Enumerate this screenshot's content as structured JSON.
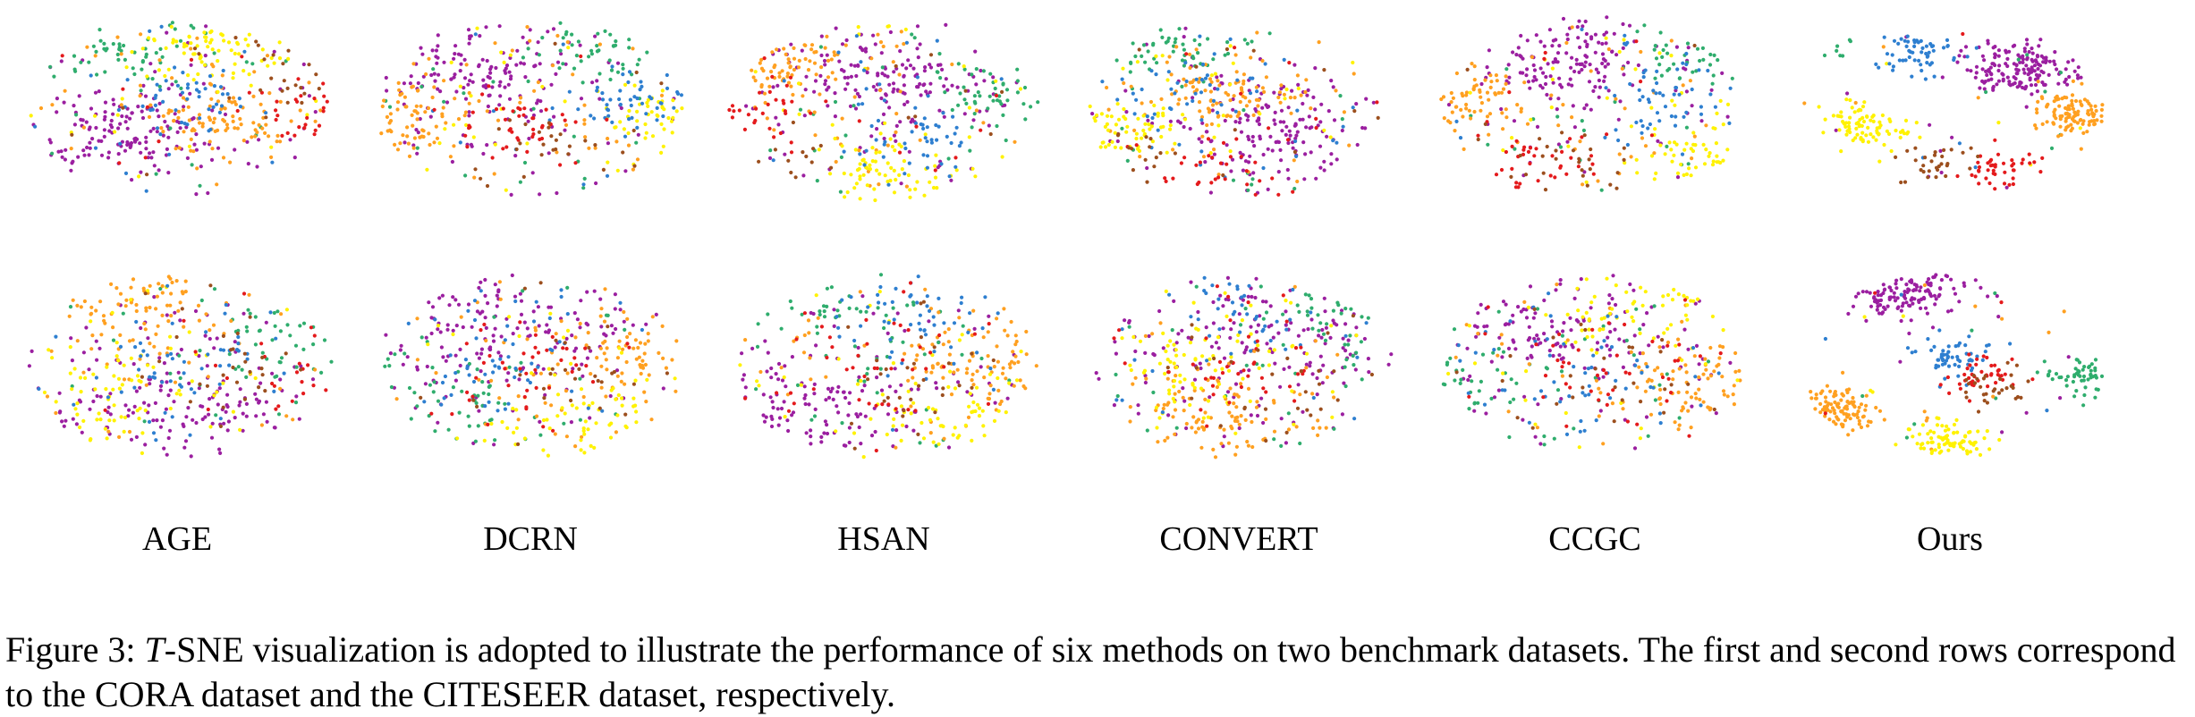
{
  "figure": {
    "methods": [
      "AGE",
      "DCRN",
      "HSAN",
      "CONVERT",
      "CCGC",
      "Ours"
    ],
    "rows": [
      "CORA",
      "CITESEER"
    ],
    "class_colors": [
      "#9b1fa0",
      "#2fad6d",
      "#ffa020",
      "#fff200",
      "#2e7fd0",
      "#e41a1c",
      "#9c4f1e"
    ]
  },
  "caption": {
    "label": "Figure 3:",
    "math": "T",
    "text": "-SNE visualization is adopted to illustrate the performance of six methods on two benchmark datasets. The first and second rows correspond to the CORA dataset and the CITESEER dataset, respectively."
  },
  "chart_data": [
    {
      "type": "scatter",
      "dataset": "CORA",
      "method": "AGE",
      "title": "AGE",
      "xlabel": "",
      "ylabel": ""
    },
    {
      "type": "scatter",
      "dataset": "CORA",
      "method": "DCRN",
      "title": "DCRN",
      "xlabel": "",
      "ylabel": ""
    },
    {
      "type": "scatter",
      "dataset": "CORA",
      "method": "HSAN",
      "title": "HSAN",
      "xlabel": "",
      "ylabel": ""
    },
    {
      "type": "scatter",
      "dataset": "CORA",
      "method": "CONVERT",
      "title": "CONVERT",
      "xlabel": "",
      "ylabel": ""
    },
    {
      "type": "scatter",
      "dataset": "CORA",
      "method": "CCGC",
      "title": "CCGC",
      "xlabel": "",
      "ylabel": ""
    },
    {
      "type": "scatter",
      "dataset": "CORA",
      "method": "Ours",
      "title": "Ours",
      "xlabel": "",
      "ylabel": ""
    },
    {
      "type": "scatter",
      "dataset": "CITESEER",
      "method": "AGE",
      "title": "AGE",
      "xlabel": "",
      "ylabel": ""
    },
    {
      "type": "scatter",
      "dataset": "CITESEER",
      "method": "DCRN",
      "title": "DCRN",
      "xlabel": "",
      "ylabel": ""
    },
    {
      "type": "scatter",
      "dataset": "CITESEER",
      "method": "HSAN",
      "title": "HSAN",
      "xlabel": "",
      "ylabel": ""
    },
    {
      "type": "scatter",
      "dataset": "CITESEER",
      "method": "CONVERT",
      "title": "CONVERT",
      "xlabel": "",
      "ylabel": ""
    },
    {
      "type": "scatter",
      "dataset": "CITESEER",
      "method": "CCGC",
      "title": "CCGC",
      "xlabel": "",
      "ylabel": ""
    },
    {
      "type": "scatter",
      "dataset": "CITESEER",
      "method": "Ours",
      "title": "Ours",
      "xlabel": "",
      "ylabel": ""
    }
  ]
}
